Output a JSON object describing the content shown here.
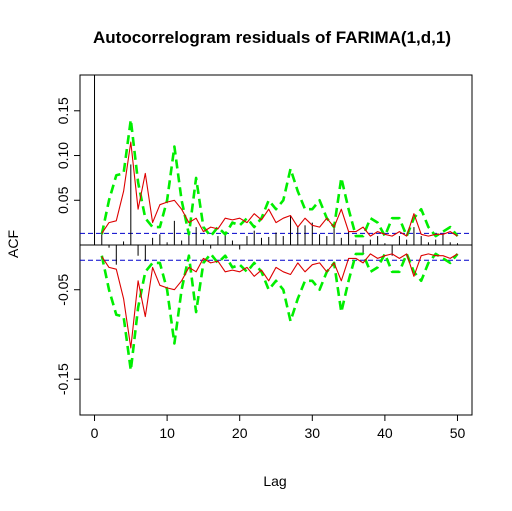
{
  "chart_data": {
    "type": "bar",
    "title": "Autocorrelogram residuals of FARIMA(1,d,1)",
    "xlabel": "Lag",
    "ylabel": "ACF",
    "xlim": [
      -2,
      52
    ],
    "ylim": [
      -0.19,
      0.19
    ],
    "x_ticks": [
      0,
      10,
      20,
      30,
      40,
      50
    ],
    "x_tick_labels": [
      "0",
      "10",
      "20",
      "30",
      "40",
      "50"
    ],
    "y_ticks": [
      -0.15,
      -0.05,
      0.05,
      0.1,
      0.15
    ],
    "y_tick_labels": [
      "-0.15",
      "-0.05",
      "0.05",
      "0.10",
      "0.15"
    ],
    "lags": [
      0,
      1,
      2,
      3,
      4,
      5,
      6,
      7,
      8,
      9,
      10,
      11,
      12,
      13,
      14,
      15,
      16,
      17,
      18,
      19,
      20,
      21,
      22,
      23,
      24,
      25,
      26,
      27,
      28,
      29,
      30,
      31,
      32,
      33,
      34,
      35,
      36,
      37,
      38,
      39,
      40,
      41,
      42,
      43,
      44,
      45,
      46,
      47,
      48,
      49,
      50
    ],
    "acf": [
      1.0,
      0.012,
      -0.003,
      -0.022,
      0.004,
      0.09,
      -0.012,
      -0.018,
      0.008,
      0.012,
      0.003,
      0.027,
      0.005,
      0.014,
      0.02,
      0.006,
      -0.004,
      0.01,
      0.012,
      0.005,
      -0.005,
      0.01,
      0.016,
      0.008,
      0.009,
      0.014,
      0.01,
      0.033,
      0.02,
      0.022,
      0.025,
      0.012,
      0.01,
      0.02,
      0.008,
      0.015,
      0.006,
      -0.011,
      0.006,
      0.01,
      0.002,
      -0.012,
      0.01,
      0.006,
      0.02,
      0.01,
      0.003,
      0.006,
      0.012,
      0.003,
      0.002
    ],
    "series": [
      {
        "color": "#00ee00",
        "style": "dashed",
        "values": [
          null,
          0.012,
          0.05,
          0.078,
          0.08,
          0.14,
          0.07,
          0.03,
          0.02,
          0.02,
          0.05,
          0.11,
          0.05,
          0.012,
          0.075,
          0.02,
          0.01,
          0.02,
          0.012,
          0.025,
          0.022,
          0.03,
          0.02,
          0.03,
          0.05,
          0.04,
          0.05,
          0.085,
          0.06,
          0.04,
          0.04,
          0.05,
          0.03,
          0.02,
          0.075,
          0.04,
          0.01,
          0.01,
          0.03,
          0.025,
          0.01,
          0.03,
          0.03,
          0.01,
          0.03,
          0.04,
          0.02,
          0.01,
          0.015,
          0.02,
          0.01
        ]
      },
      {
        "color": "#dd0000",
        "style": "solid",
        "values": [
          null,
          0.013,
          0.025,
          0.027,
          0.06,
          0.115,
          0.04,
          0.08,
          0.025,
          0.045,
          0.048,
          0.05,
          0.04,
          0.025,
          0.03,
          0.015,
          0.02,
          0.018,
          0.03,
          0.028,
          0.03,
          0.025,
          0.035,
          0.028,
          0.04,
          0.025,
          0.03,
          0.033,
          0.02,
          0.03,
          0.022,
          0.02,
          0.03,
          0.02,
          0.04,
          0.015,
          0.015,
          0.02,
          0.01,
          0.015,
          0.012,
          0.01,
          0.015,
          0.01,
          0.035,
          0.012,
          0.01,
          0.012,
          0.012,
          0.015,
          0.01
        ]
      }
    ],
    "confidence_band": {
      "upper": 0.013,
      "lower": -0.017,
      "color": "#0000cc",
      "style": "dashed"
    },
    "curves_mirrored_about_zero": true
  }
}
